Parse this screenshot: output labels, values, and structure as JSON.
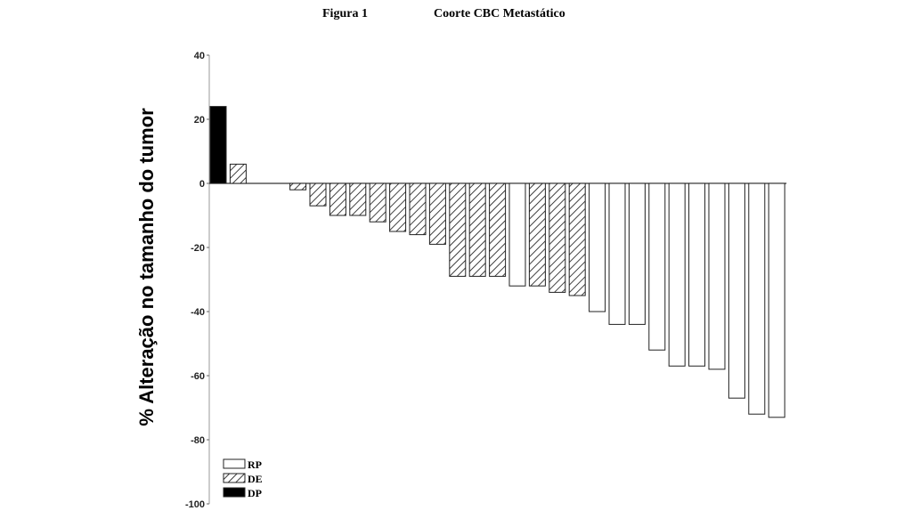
{
  "figure": {
    "label": "Figura 1",
    "title": "Coorte CBC Metastático"
  },
  "chart_data": {
    "type": "bar",
    "title": "Coorte CBC Metastático",
    "xlabel": "",
    "ylabel": "% Alteração no tamanho do tumor",
    "ylim": [
      -100,
      40
    ],
    "yticks": [
      40,
      20,
      0,
      -20,
      -40,
      -60,
      -80,
      -100
    ],
    "ytick_labels": [
      "40",
      "20",
      "0",
      "-20",
      "-40",
      "-60",
      "-80",
      "-100"
    ],
    "grid": false,
    "legend_position": "bottom-left",
    "legend": [
      {
        "key": "RP",
        "label": "RP",
        "style": "white"
      },
      {
        "key": "DE",
        "label": "DE",
        "style": "hatched"
      },
      {
        "key": "DP",
        "label": "DP",
        "style": "black"
      }
    ],
    "bars": [
      {
        "value": 24,
        "category": "DP"
      },
      {
        "value": 6,
        "category": "DE"
      },
      {
        "value": 0,
        "category": "DE"
      },
      {
        "value": 0,
        "category": "DE"
      },
      {
        "value": -2,
        "category": "DE"
      },
      {
        "value": -7,
        "category": "DE"
      },
      {
        "value": -10,
        "category": "DE"
      },
      {
        "value": -10,
        "category": "DE"
      },
      {
        "value": -12,
        "category": "DE"
      },
      {
        "value": -15,
        "category": "DE"
      },
      {
        "value": -16,
        "category": "DE"
      },
      {
        "value": -19,
        "category": "DE"
      },
      {
        "value": -29,
        "category": "DE"
      },
      {
        "value": -29,
        "category": "DE"
      },
      {
        "value": -29,
        "category": "DE"
      },
      {
        "value": -32,
        "category": "RP"
      },
      {
        "value": -32,
        "category": "DE"
      },
      {
        "value": -34,
        "category": "DE"
      },
      {
        "value": -35,
        "category": "DE"
      },
      {
        "value": -40,
        "category": "RP"
      },
      {
        "value": -44,
        "category": "RP"
      },
      {
        "value": -44,
        "category": "RP"
      },
      {
        "value": -52,
        "category": "RP"
      },
      {
        "value": -57,
        "category": "RP"
      },
      {
        "value": -57,
        "category": "RP"
      },
      {
        "value": -58,
        "category": "RP"
      },
      {
        "value": -67,
        "category": "RP"
      },
      {
        "value": -72,
        "category": "RP"
      },
      {
        "value": -73,
        "category": "RP"
      }
    ]
  }
}
